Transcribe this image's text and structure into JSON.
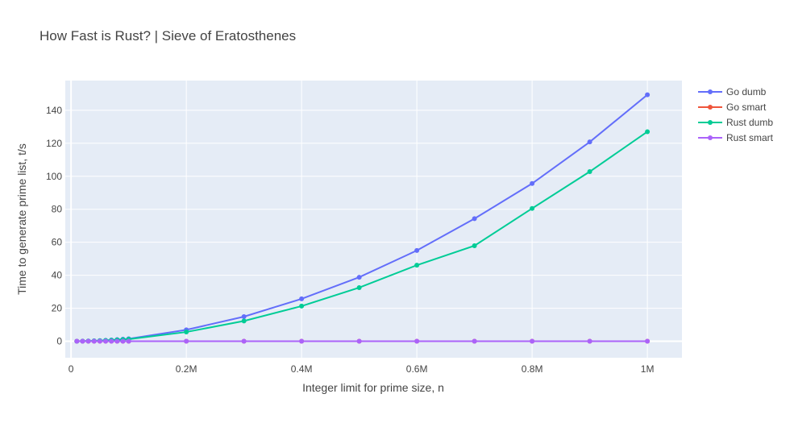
{
  "chart_data": {
    "type": "line",
    "title": "How Fast is Rust? | Sieve of Eratosthenes",
    "xlabel": "Integer limit for prime size, n",
    "ylabel": "Time to generate prime list, t/s",
    "xlim": [
      -10000,
      1060000
    ],
    "ylim": [
      -10,
      158
    ],
    "x_ticks": [
      {
        "value": 0,
        "label": "0"
      },
      {
        "value": 200000,
        "label": "0.2M"
      },
      {
        "value": 400000,
        "label": "0.4M"
      },
      {
        "value": 600000,
        "label": "0.6M"
      },
      {
        "value": 800000,
        "label": "0.8M"
      },
      {
        "value": 1000000,
        "label": "1M"
      }
    ],
    "y_ticks": [
      {
        "value": 0,
        "label": "0"
      },
      {
        "value": 20,
        "label": "20"
      },
      {
        "value": 40,
        "label": "40"
      },
      {
        "value": 60,
        "label": "60"
      },
      {
        "value": 80,
        "label": "80"
      },
      {
        "value": 100,
        "label": "100"
      },
      {
        "value": 120,
        "label": "120"
      },
      {
        "value": 140,
        "label": "140"
      }
    ],
    "grid": true,
    "legend_position": "right",
    "plot_background": "#e5ecf6",
    "x": [
      10000,
      20000,
      30000,
      40000,
      50000,
      60000,
      70000,
      80000,
      90000,
      100000,
      200000,
      300000,
      400000,
      500000,
      600000,
      700000,
      800000,
      900000,
      1000000
    ],
    "series": [
      {
        "name": "Go dumb",
        "color": "#636efa",
        "values": [
          0.02,
          0.06,
          0.14,
          0.24,
          0.37,
          0.54,
          0.73,
          0.96,
          1.21,
          1.5,
          6.9,
          14.9,
          25.7,
          38.8,
          55.0,
          74.3,
          95.6,
          120.8,
          149.4
        ]
      },
      {
        "name": "Go smart",
        "color": "#ef553b",
        "values": [
          0,
          0,
          0,
          0,
          0,
          0,
          0,
          0,
          0,
          0,
          0,
          0,
          0,
          0,
          0,
          0,
          0,
          0,
          0
        ]
      },
      {
        "name": "Rust dumb",
        "color": "#00cc96",
        "values": [
          0.02,
          0.05,
          0.12,
          0.2,
          0.31,
          0.45,
          0.61,
          0.8,
          1.01,
          1.25,
          5.6,
          12.3,
          21.3,
          32.5,
          46.1,
          57.9,
          80.5,
          102.8,
          127.0
        ]
      },
      {
        "name": "Rust smart",
        "color": "#ab63fa",
        "values": [
          0,
          0,
          0,
          0,
          0,
          0,
          0,
          0,
          0,
          0,
          0,
          0,
          0,
          0,
          0,
          0,
          0,
          0,
          0
        ]
      }
    ]
  }
}
